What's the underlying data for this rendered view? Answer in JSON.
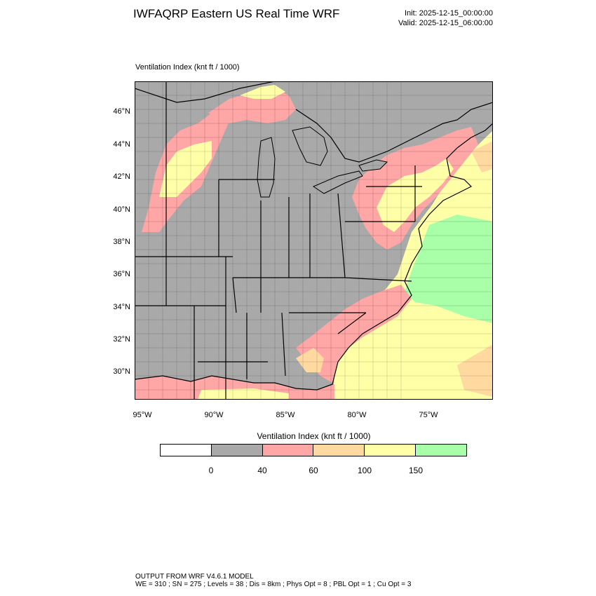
{
  "header": {
    "title": "IWFAQRP Eastern US Real Time WRF",
    "init": "Init: 2025-12-15_00:00:00",
    "valid": "Valid: 2025-12-15_06:00:00"
  },
  "map": {
    "field_label": "Ventilation Index   (knt ft / 1000)",
    "lat_ticks": [
      "46°N",
      "44°N",
      "42°N",
      "40°N",
      "38°N",
      "36°N",
      "34°N",
      "32°N",
      "30°N"
    ],
    "lon_ticks": [
      "95°W",
      "90°W",
      "85°W",
      "80°W",
      "75°W"
    ],
    "colors": {
      "water": "#a9a9a9",
      "land": "#a9a9a9",
      "low": "#ffa6a6",
      "mid": "#ffd9a0",
      "high": "#ffffa8",
      "top": "#a8ffa8"
    }
  },
  "legend": {
    "label": "Ventilation Index  (knt ft / 1000)",
    "colors": [
      "#ffffff",
      "#a9a9a9",
      "#ffa6a6",
      "#ffd9a0",
      "#ffffa8",
      "#a8ffa8"
    ],
    "ticks": [
      "0",
      "40",
      "60",
      "100",
      "150"
    ]
  },
  "footer": {
    "line1": "OUTPUT FROM WRF V4.6.1 MODEL",
    "line2": "WE = 310 ; SN = 275 ; Levels = 38 ; Dis = 8km ; Phys Opt = 8 ; PBL Opt = 1 ; Cu Opt = 3"
  }
}
